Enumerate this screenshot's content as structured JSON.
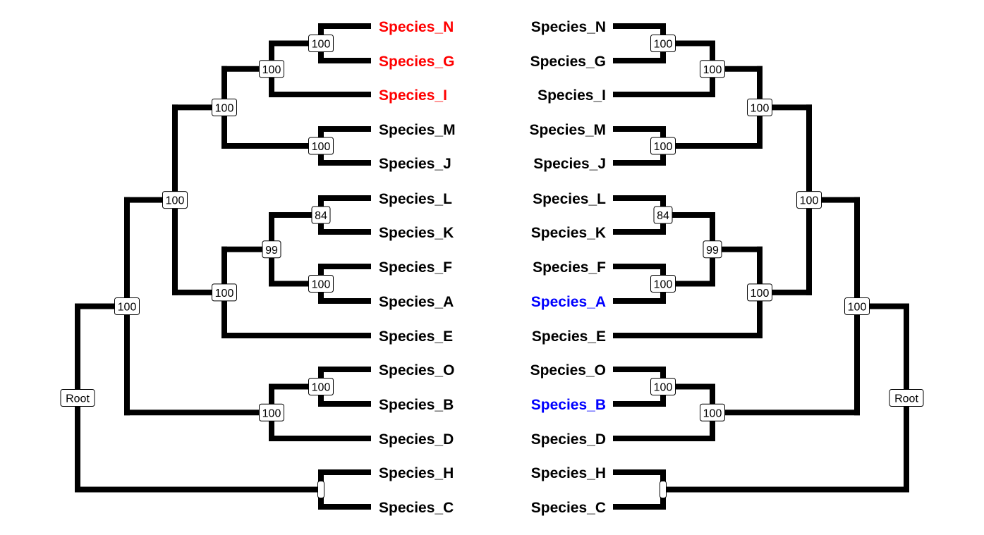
{
  "colors": {
    "branch": "#000000",
    "label_default": "#000000",
    "highlight_left": "#ff0000",
    "highlight_right": "#0000ff"
  },
  "trees": [
    {
      "side": "left",
      "tips": [
        {
          "name": "Species_N",
          "color": "#ff0000"
        },
        {
          "name": "Species_G",
          "color": "#ff0000"
        },
        {
          "name": "Species_I",
          "color": "#ff0000"
        },
        {
          "name": "Species_M",
          "color": "#000000"
        },
        {
          "name": "Species_J",
          "color": "#000000"
        },
        {
          "name": "Species_L",
          "color": "#000000"
        },
        {
          "name": "Species_K",
          "color": "#000000"
        },
        {
          "name": "Species_F",
          "color": "#000000"
        },
        {
          "name": "Species_A",
          "color": "#000000"
        },
        {
          "name": "Species_E",
          "color": "#000000"
        },
        {
          "name": "Species_O",
          "color": "#000000"
        },
        {
          "name": "Species_B",
          "color": "#000000"
        },
        {
          "name": "Species_D",
          "color": "#000000"
        },
        {
          "name": "Species_H",
          "color": "#000000"
        },
        {
          "name": "Species_C",
          "color": "#000000"
        }
      ],
      "root_label": "Root",
      "nodes": {
        "NG": "100",
        "NGI": "100",
        "MJ": "100",
        "NGIMJ": "100",
        "LK": "84",
        "FA": "100",
        "LKFA": "99",
        "LKFAE": "100",
        "BIG": "100",
        "OB": "100",
        "OBD": "100",
        "ALL": "100",
        "HC": ""
      }
    },
    {
      "side": "right",
      "tips": [
        {
          "name": "Species_N",
          "color": "#000000"
        },
        {
          "name": "Species_G",
          "color": "#000000"
        },
        {
          "name": "Species_I",
          "color": "#000000"
        },
        {
          "name": "Species_M",
          "color": "#000000"
        },
        {
          "name": "Species_J",
          "color": "#000000"
        },
        {
          "name": "Species_L",
          "color": "#000000"
        },
        {
          "name": "Species_K",
          "color": "#000000"
        },
        {
          "name": "Species_F",
          "color": "#000000"
        },
        {
          "name": "Species_A",
          "color": "#0000ff"
        },
        {
          "name": "Species_E",
          "color": "#000000"
        },
        {
          "name": "Species_O",
          "color": "#000000"
        },
        {
          "name": "Species_B",
          "color": "#0000ff"
        },
        {
          "name": "Species_D",
          "color": "#000000"
        },
        {
          "name": "Species_H",
          "color": "#000000"
        },
        {
          "name": "Species_C",
          "color": "#000000"
        }
      ],
      "root_label": "Root",
      "nodes": {
        "NG": "100",
        "NGI": "100",
        "MJ": "100",
        "NGIMJ": "100",
        "LK": "84",
        "FA": "100",
        "LKFA": "99",
        "LKFAE": "100",
        "BIG": "100",
        "OB": "100",
        "OBD": "100",
        "ALL": "100",
        "HC": ""
      }
    }
  ]
}
